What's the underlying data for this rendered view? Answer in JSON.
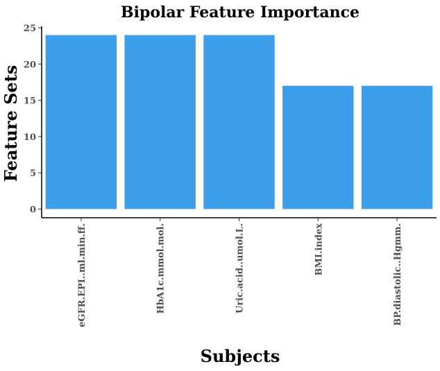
{
  "chart_data": {
    "type": "bar",
    "title": "Bipolar Feature Importance",
    "xlabel": "Subjects",
    "ylabel": "Feature Sets",
    "categories": [
      "eGFR.EPI..ml.min.ff.",
      "HbA1c.mmol.mol.",
      "Uric.acid..umol.L.",
      "BMI.index",
      "BP.diastolic..Hgmm."
    ],
    "values": [
      24,
      24,
      24,
      17,
      17
    ],
    "yticks": [
      0,
      5,
      10,
      15,
      20,
      25
    ],
    "ylim": [
      -1.2,
      25.2
    ],
    "grid": false,
    "bar_color": "#3d9fea"
  }
}
